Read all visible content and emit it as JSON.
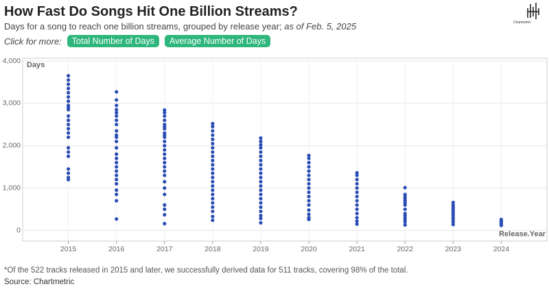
{
  "chart_data": {
    "type": "scatter",
    "title": "How Fast Do Songs Hit One Billion Streams?",
    "subtitle": "Days for a song to reach one billion streams, grouped by release year; ",
    "subtitle_date": "as of Feb. 5, 2025",
    "click_label": "Click for more:",
    "buttons": [
      "Total Number of Days",
      "Average Number of Days"
    ],
    "y_label": "Days",
    "x_label": "Release.Year",
    "footnote": "*Of the 522 tracks released in 2015 and later, we successfully derived data for 511 tracks, covering 98% of the total.",
    "source": "Source: Chartmetric",
    "logo": "Chartmetric",
    "color": "#2a4db3",
    "grid": true,
    "xlim": [
      2014.05,
      2024.95
    ],
    "xticks": [
      2015,
      2016,
      2017,
      2018,
      2019,
      2020,
      2021,
      2022,
      2023,
      2024
    ],
    "ylim": [
      -250,
      4000
    ],
    "yticks": [
      0,
      {
        "value": 1000,
        "label": "1,000"
      },
      {
        "value": 2000,
        "label": "2,000"
      },
      {
        "value": 3000,
        "label": "3,000"
      },
      {
        "value": 4000,
        "label": "4,000"
      }
    ],
    "x": [
      2015,
      2015,
      2015,
      2015,
      2015,
      2015,
      2015,
      2015,
      2015,
      2015,
      2015,
      2015,
      2015,
      2015,
      2015,
      2015,
      2015,
      2015,
      2015,
      2015,
      2015,
      2015,
      2015,
      2016,
      2016,
      2016,
      2016,
      2016,
      2016,
      2016,
      2016,
      2016,
      2016,
      2016,
      2016,
      2016,
      2016,
      2016,
      2016,
      2016,
      2016,
      2016,
      2016,
      2016,
      2016,
      2016,
      2016,
      2016,
      2017,
      2017,
      2017,
      2017,
      2017,
      2017,
      2017,
      2017,
      2017,
      2017,
      2017,
      2017,
      2017,
      2017,
      2017,
      2017,
      2017,
      2017,
      2017,
      2017,
      2017,
      2017,
      2017,
      2017,
      2017,
      2017,
      2018,
      2018,
      2018,
      2018,
      2018,
      2018,
      2018,
      2018,
      2018,
      2018,
      2018,
      2018,
      2018,
      2018,
      2018,
      2018,
      2018,
      2018,
      2018,
      2018,
      2018,
      2018,
      2018,
      2018,
      2019,
      2019,
      2019,
      2019,
      2019,
      2019,
      2019,
      2019,
      2019,
      2019,
      2019,
      2019,
      2019,
      2019,
      2019,
      2019,
      2019,
      2019,
      2019,
      2019,
      2019,
      2019,
      2020,
      2020,
      2020,
      2020,
      2020,
      2020,
      2020,
      2020,
      2020,
      2020,
      2020,
      2020,
      2020,
      2020,
      2020,
      2020,
      2020,
      2021,
      2021,
      2021,
      2021,
      2021,
      2021,
      2021,
      2021,
      2021,
      2021,
      2021,
      2021,
      2021,
      2021,
      2022,
      2022,
      2022,
      2022,
      2022,
      2022,
      2022,
      2022,
      2022,
      2022,
      2022,
      2022,
      2022,
      2022,
      2023,
      2023,
      2023,
      2023,
      2023,
      2023,
      2023,
      2023,
      2023,
      2023,
      2023,
      2024,
      2024,
      2024,
      2024,
      2024,
      2024
    ],
    "values": [
      3650,
      3550,
      3450,
      3350,
      3250,
      3150,
      3050,
      2950,
      2900,
      2850,
      2700,
      2600,
      2500,
      2400,
      2300,
      2200,
      1950,
      1850,
      1750,
      1450,
      1350,
      1250,
      1200,
      3270,
      3080,
      2950,
      2850,
      2780,
      2700,
      2600,
      2500,
      2350,
      2250,
      2200,
      2100,
      1950,
      1800,
      1700,
      1600,
      1500,
      1400,
      1300,
      1200,
      1100,
      950,
      850,
      700,
      270,
      2840,
      2780,
      2700,
      2600,
      2500,
      2450,
      2400,
      2300,
      2250,
      2200,
      2100,
      2000,
      1900,
      1800,
      1700,
      1600,
      1500,
      1400,
      1300,
      1150,
      1000,
      850,
      600,
      500,
      370,
      160,
      2520,
      2450,
      2350,
      2250,
      2150,
      2050,
      1950,
      1850,
      1750,
      1650,
      1550,
      1450,
      1350,
      1250,
      1150,
      1050,
      950,
      850,
      750,
      650,
      550,
      450,
      330,
      240,
      2180,
      2100,
      2020,
      1950,
      1850,
      1750,
      1650,
      1550,
      1450,
      1350,
      1250,
      1150,
      1050,
      950,
      850,
      750,
      650,
      550,
      450,
      350,
      280,
      180,
      1770,
      1700,
      1600,
      1500,
      1400,
      1300,
      1200,
      1100,
      1000,
      900,
      800,
      700,
      600,
      480,
      380,
      300,
      260,
      1360,
      1300,
      1200,
      1100,
      1000,
      900,
      800,
      700,
      600,
      500,
      400,
      300,
      220,
      150,
      1010,
      850,
      800,
      750,
      700,
      650,
      600,
      500,
      400,
      350,
      300,
      250,
      200,
      130,
      660,
      600,
      550,
      500,
      450,
      400,
      350,
      300,
      250,
      200,
      140,
      260,
      230,
      200,
      170,
      140,
      120
    ]
  }
}
